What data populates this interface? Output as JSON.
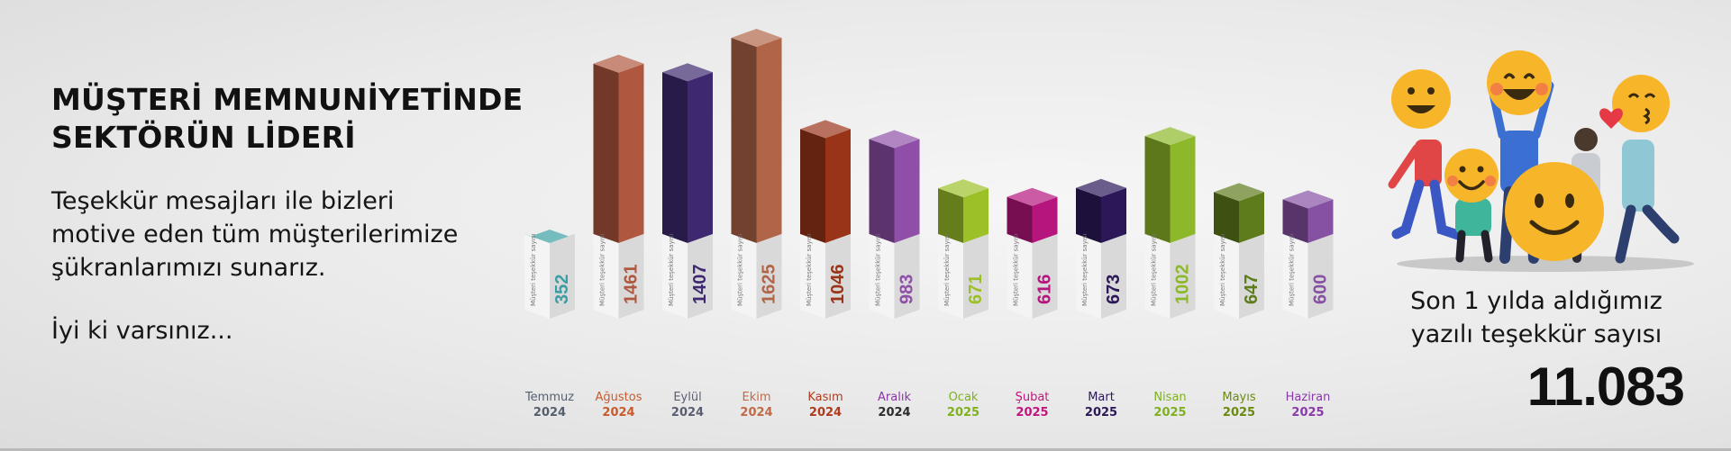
{
  "headline": "MÜŞTERİ MEMNUNİYETİNDE\nSEKTÖRÜN LİDERİ",
  "thanks_message": "Teşekkür mesajları ile bizleri\nmotive eden tüm müşterilerimize\nşükranlarımızı sunarız.",
  "closing": "İyi ki varsınız...",
  "total": {
    "label": "Son 1 yılda aldığımız\nyazılı teşekkür sayısı",
    "value": "11.083"
  },
  "chart_data": {
    "type": "bar",
    "bar_caption": "Müşteri teşekkür sayısı",
    "categories": [
      {
        "month": "Temmuz",
        "year": "2024"
      },
      {
        "month": "Ağustos",
        "year": "2024"
      },
      {
        "month": "Eylül",
        "year": "2024"
      },
      {
        "month": "Ekim",
        "year": "2024"
      },
      {
        "month": "Kasım",
        "year": "2024"
      },
      {
        "month": "Aralık",
        "year": "2024"
      },
      {
        "month": "Ocak",
        "year": "2025"
      },
      {
        "month": "Şubat",
        "year": "2025"
      },
      {
        "month": "Mart",
        "year": "2025"
      },
      {
        "month": "Nisan",
        "year": "2025"
      },
      {
        "month": "Mayıs",
        "year": "2025"
      },
      {
        "month": "Haziran",
        "year": "2025"
      }
    ],
    "values": [
      352,
      1461,
      1407,
      1625,
      1046,
      983,
      671,
      616,
      673,
      1002,
      647,
      600
    ],
    "colors": [
      "#3a9fa3",
      "#b0583f",
      "#3e2870",
      "#b06448",
      "#9a3419",
      "#8f4fa8",
      "#9cc128",
      "#b5157d",
      "#2c1859",
      "#8db829",
      "#5e7c1c",
      "#8650a3"
    ],
    "month_colors": [
      "#555f6e",
      "#c85a2e",
      "#5a5f70",
      "#c06a48",
      "#b03a1c",
      "#8a35a6",
      "#7fb020",
      "#c1157d",
      "#2c1859",
      "#7fb020",
      "#6a8a12",
      "#8a3aa8"
    ],
    "year_colors": [
      "#555f6e",
      "#c85a2e",
      "#5a5f70",
      "#c06a48",
      "#b03a1c",
      "#2c2c2c",
      "#7fb020",
      "#c1157d",
      "#2c1859",
      "#7fb020",
      "#6a8a12",
      "#8a3aa8"
    ]
  }
}
